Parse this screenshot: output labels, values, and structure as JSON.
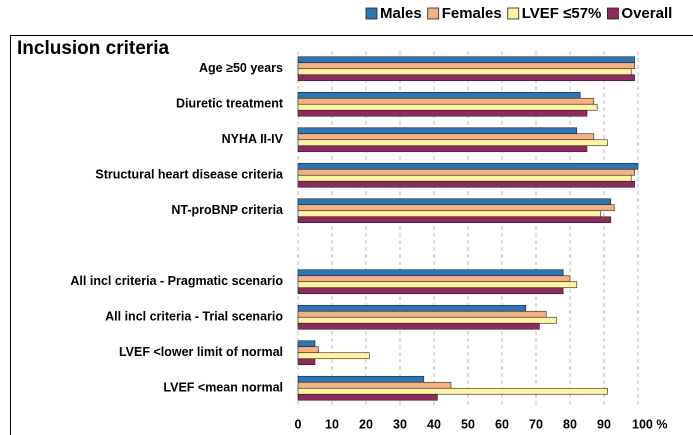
{
  "chart_data": {
    "type": "bar",
    "orientation": "horizontal",
    "title": "Inclusion criteria",
    "categories": [
      "Age ≥50 years",
      "Diuretic treatment",
      "NYHA II-IV",
      "Structural heart disease criteria",
      "NT-proBNP criteria",
      null,
      "All incl criteria - Pragmatic scenario",
      "All incl criteria - Trial scenario",
      "LVEF <lower limit of normal",
      "LVEF <mean normal"
    ],
    "series": [
      {
        "name": "Males",
        "color": "#2e75b6",
        "values": [
          99,
          83,
          82,
          100,
          92,
          null,
          78,
          67,
          5,
          37
        ]
      },
      {
        "name": "Females",
        "color": "#f4b183",
        "values": [
          99,
          87,
          87,
          99,
          93,
          null,
          80,
          73,
          6,
          45
        ]
      },
      {
        "name": "LVEF ≤57%",
        "color": "#fff2a0",
        "values": [
          98,
          88,
          91,
          98,
          89,
          null,
          82,
          76,
          21,
          91
        ]
      },
      {
        "name": "Overall",
        "color": "#8e2a5e",
        "values": [
          99,
          85,
          85,
          99,
          92,
          null,
          78,
          71,
          5,
          41
        ]
      }
    ],
    "xlim": [
      0,
      100
    ],
    "xticks": [
      0,
      10,
      20,
      30,
      40,
      50,
      60,
      70,
      80,
      90,
      {
        "value": 100,
        "label": "100 %"
      }
    ],
    "grid": true,
    "legend": "top-right"
  }
}
